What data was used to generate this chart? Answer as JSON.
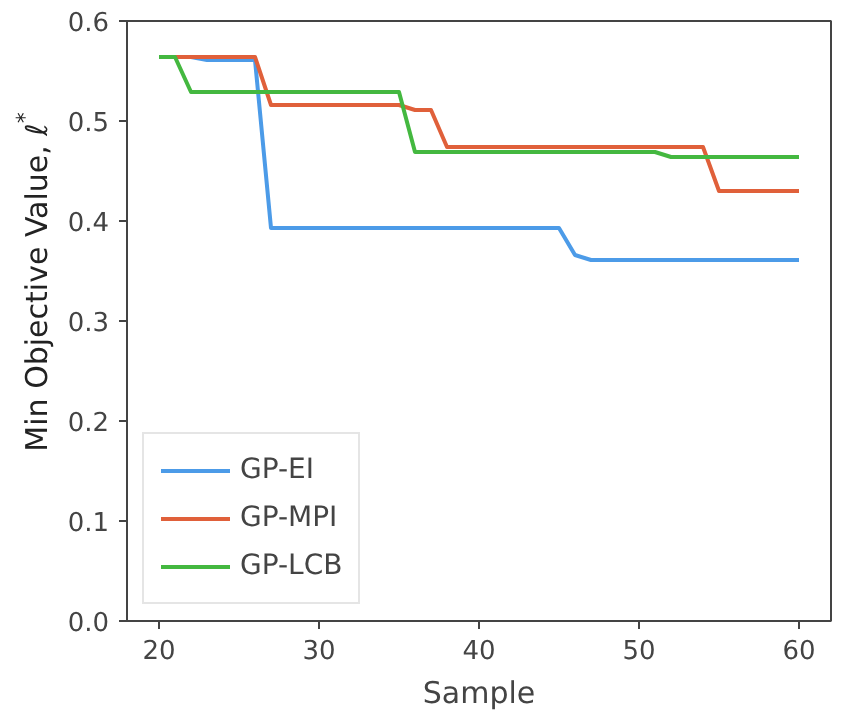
{
  "chart_data": {
    "type": "line",
    "xlabel": "Sample",
    "ylabel": "Min Objective Value, ℓ$^{*}$",
    "xlim": [
      18,
      62
    ],
    "ylim": [
      0,
      0.6
    ],
    "xticks": [
      20,
      30,
      40,
      50,
      60
    ],
    "yticks": [
      {
        "value": 0,
        "label": "0.0"
      },
      0.1,
      0.2,
      0.3,
      0.4,
      0.5,
      0.6
    ],
    "grid": false,
    "legend": "bottom left",
    "line_style": "solid",
    "marker": "none",
    "series": [
      {
        "name": "GP-EI",
        "color": "#4c9be8",
        "x": [
          20,
          22,
          23,
          26,
          27,
          45,
          46,
          47,
          60
        ],
        "values": [
          0.564,
          0.564,
          0.561,
          0.561,
          0.393,
          0.393,
          0.366,
          0.361,
          0.361
        ]
      },
      {
        "name": "GP-MPI",
        "color": "#e0603a",
        "x": [
          20,
          26,
          27,
          35,
          36,
          37,
          38,
          54,
          55,
          60
        ],
        "values": [
          0.564,
          0.564,
          0.516,
          0.516,
          0.511,
          0.511,
          0.474,
          0.474,
          0.43,
          0.43
        ]
      },
      {
        "name": "GP-LCB",
        "color": "#44b840",
        "x": [
          20,
          21,
          22,
          35,
          36,
          51,
          52,
          60
        ],
        "values": [
          0.564,
          0.564,
          0.529,
          0.529,
          0.469,
          0.469,
          0.464,
          0.464
        ]
      }
    ]
  }
}
